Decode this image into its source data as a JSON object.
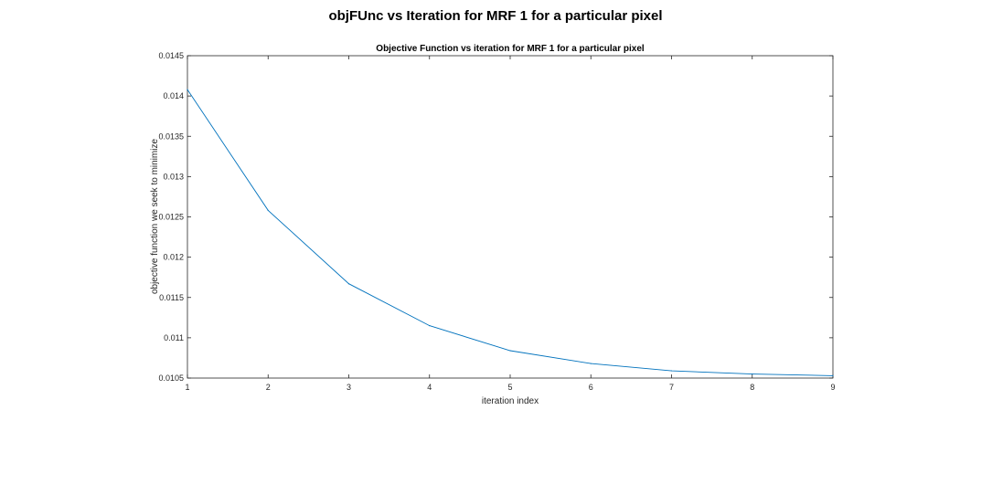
{
  "figure_title": "objFUnc vs Iteration for MRF 1 for a particular pixel",
  "chart_data": {
    "type": "line",
    "title": "Objective Function vs iteration for MRF 1 for a particular pixel",
    "xlabel": "iteration index",
    "ylabel": "objective function we seek to minimize",
    "xlim": [
      1,
      9
    ],
    "ylim": [
      0.0105,
      0.0145
    ],
    "xticks": [
      1,
      2,
      3,
      4,
      5,
      6,
      7,
      8,
      9
    ],
    "xtick_labels": [
      "1",
      "2",
      "3",
      "4",
      "5",
      "6",
      "7",
      "8",
      "9"
    ],
    "yticks": [
      0.0105,
      0.011,
      0.0115,
      0.012,
      0.0125,
      0.013,
      0.0135,
      0.014,
      0.0145
    ],
    "ytick_labels": [
      "0.0105",
      "0.011",
      "0.0115",
      "0.012",
      "0.0125",
      "0.013",
      "0.0135",
      "0.014",
      "0.0145"
    ],
    "grid": false,
    "series": [
      {
        "color": "#0072BD",
        "x": [
          1,
          2,
          3,
          4,
          5,
          6,
          7,
          8,
          9
        ],
        "y": [
          0.01408,
          0.01258,
          0.01167,
          0.01115,
          0.01084,
          0.01068,
          0.01059,
          0.01055,
          0.01053
        ]
      }
    ]
  }
}
